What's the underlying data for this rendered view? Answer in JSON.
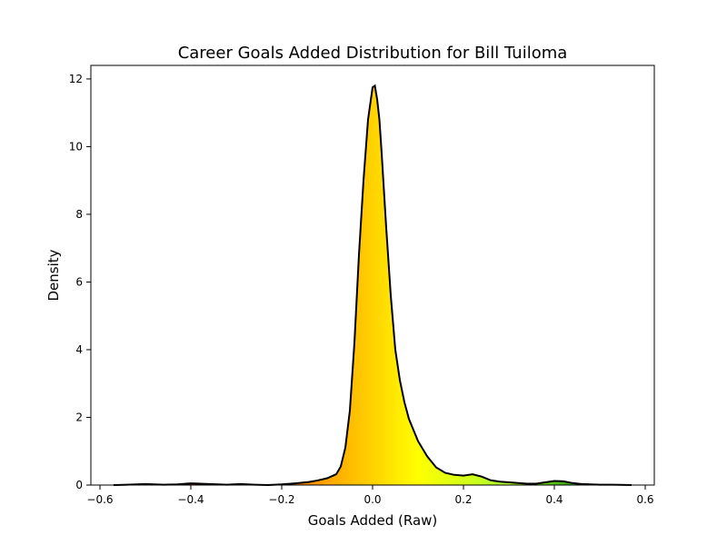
{
  "chart_data": {
    "type": "area",
    "title": "Career Goals Added Distribution for Bill Tuiloma",
    "xlabel": "Goals Added (Raw)",
    "ylabel": "Density",
    "xlim": [
      -0.62,
      0.62
    ],
    "ylim": [
      0,
      12.4
    ],
    "xticks": [
      -0.6,
      -0.4,
      -0.2,
      0.0,
      0.2,
      0.4,
      0.6
    ],
    "xtick_labels": [
      "−0.6",
      "−0.4",
      "−0.2",
      "0.0",
      "0.2",
      "0.4",
      "0.6"
    ],
    "yticks": [
      0,
      2,
      4,
      6,
      8,
      10,
      12
    ],
    "ytick_labels": [
      "0",
      "2",
      "4",
      "6",
      "8",
      "10",
      "12"
    ],
    "grid": false,
    "line_color": "#000000",
    "fill_colormap": [
      "#8b0000",
      "#e03a1e",
      "#ffa500",
      "#ffff00",
      "#adff2f",
      "#008000"
    ],
    "fill_colormap_range": [
      -0.5,
      0.5
    ],
    "x": [
      -0.57,
      -0.54,
      -0.5,
      -0.46,
      -0.43,
      -0.4,
      -0.36,
      -0.32,
      -0.29,
      -0.26,
      -0.23,
      -0.2,
      -0.17,
      -0.14,
      -0.12,
      -0.1,
      -0.08,
      -0.07,
      -0.06,
      -0.05,
      -0.04,
      -0.03,
      -0.02,
      -0.01,
      0.0,
      0.005,
      0.01,
      0.015,
      0.02,
      0.03,
      0.04,
      0.05,
      0.06,
      0.07,
      0.08,
      0.1,
      0.12,
      0.14,
      0.16,
      0.18,
      0.2,
      0.22,
      0.24,
      0.26,
      0.28,
      0.3,
      0.32,
      0.34,
      0.36,
      0.38,
      0.4,
      0.42,
      0.44,
      0.46,
      0.48,
      0.5,
      0.53,
      0.57
    ],
    "y": [
      0.0,
      0.01,
      0.03,
      0.01,
      0.02,
      0.05,
      0.03,
      0.01,
      0.03,
      0.01,
      0.0,
      0.02,
      0.05,
      0.09,
      0.14,
      0.2,
      0.32,
      0.55,
      1.1,
      2.2,
      4.2,
      6.8,
      9.0,
      10.8,
      11.75,
      11.8,
      11.4,
      10.8,
      9.8,
      7.6,
      5.6,
      4.0,
      3.1,
      2.45,
      1.95,
      1.3,
      0.85,
      0.52,
      0.36,
      0.3,
      0.28,
      0.32,
      0.25,
      0.14,
      0.1,
      0.08,
      0.06,
      0.04,
      0.04,
      0.08,
      0.12,
      0.11,
      0.06,
      0.03,
      0.02,
      0.01,
      0.01,
      0.0
    ]
  }
}
